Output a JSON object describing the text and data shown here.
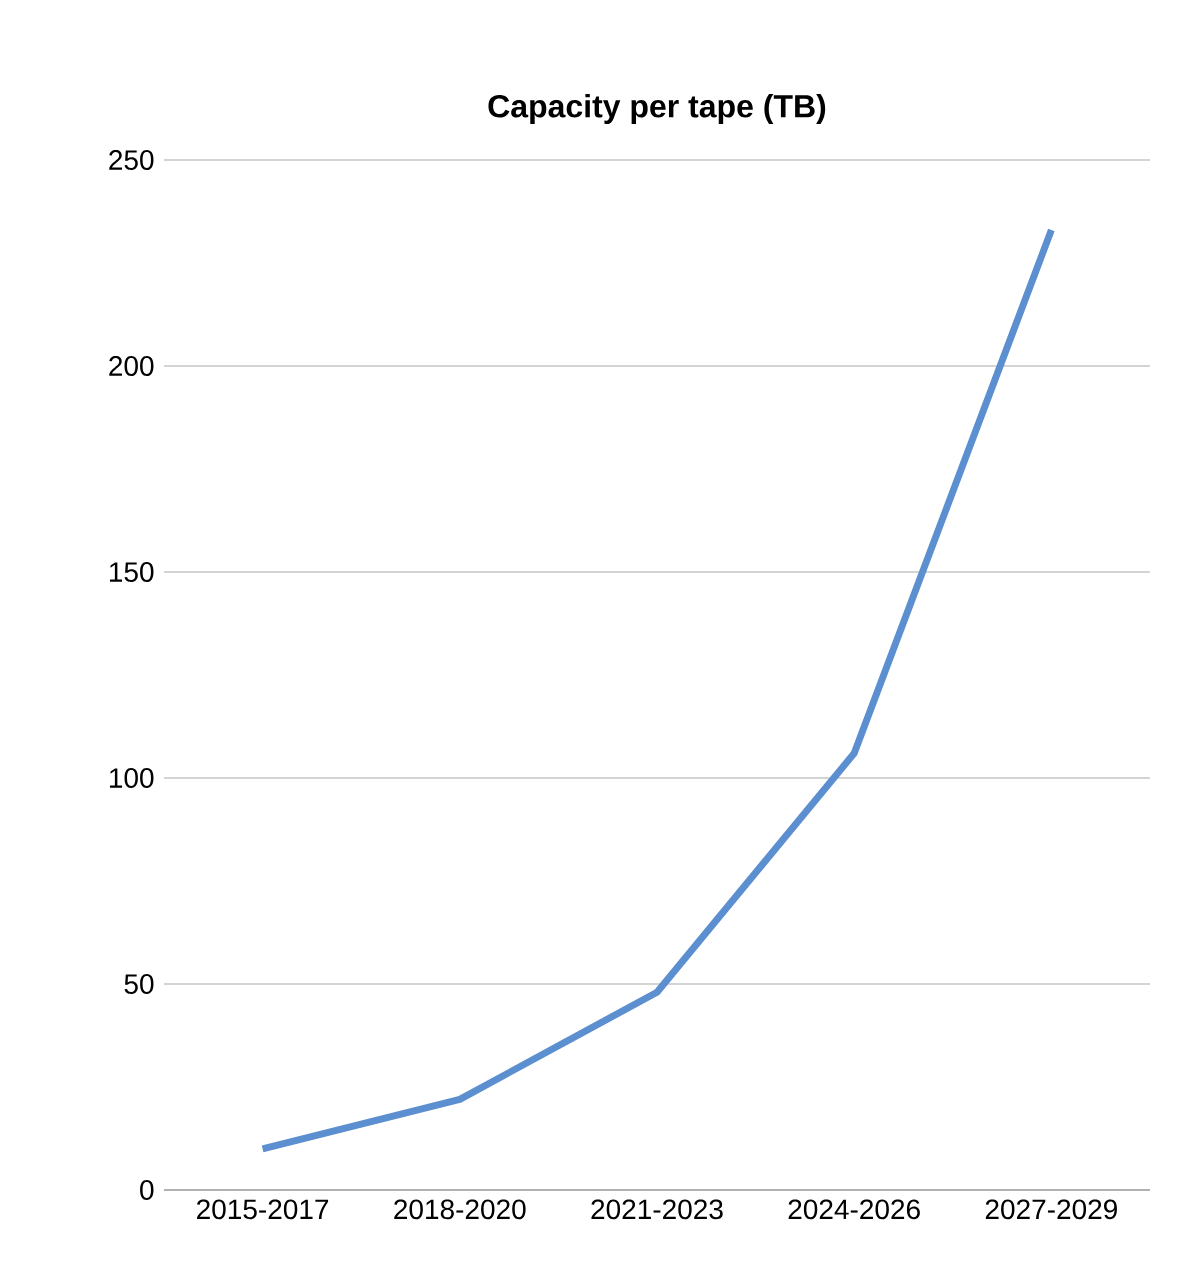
{
  "chart_data": {
    "type": "line",
    "title": "Capacity per tape (TB)",
    "categories": [
      "2015-2017",
      "2018-2020",
      "2021-2023",
      "2024-2026",
      "2027-2029"
    ],
    "values": [
      10,
      22,
      48,
      106,
      233
    ],
    "color": "#5b8fd0",
    "ylim": [
      0,
      250
    ],
    "yticks": [
      0,
      50,
      100,
      150,
      200,
      250
    ],
    "grid": "y",
    "marker": "none",
    "line_style": "solid"
  }
}
